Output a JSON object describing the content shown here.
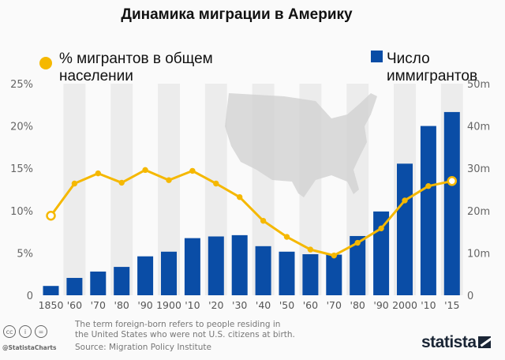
{
  "chart_data": {
    "type": "bar+line",
    "title": "Динамика миграции в Америку",
    "categories": [
      "1850",
      "'60",
      "'70",
      "'80",
      "'90",
      "1900",
      "'10",
      "'20",
      "'30",
      "'40",
      "'50",
      "'60",
      "'70",
      "'80",
      "'90",
      "2000",
      "'10",
      "'15"
    ],
    "series": [
      {
        "name": "Число иммигрантов",
        "type": "bar",
        "axis": "right",
        "color": "#0a4da6",
        "values": [
          2.2,
          4.1,
          5.6,
          6.7,
          9.2,
          10.3,
          13.5,
          13.9,
          14.2,
          11.6,
          10.3,
          9.7,
          9.6,
          14.0,
          19.8,
          31.1,
          40.0,
          43.3
        ]
      },
      {
        "name": "% мигрантов в общем населении",
        "type": "line",
        "axis": "left",
        "color": "#f5b800",
        "values": [
          9.4,
          13.2,
          14.4,
          13.3,
          14.8,
          13.6,
          14.7,
          13.2,
          11.6,
          8.8,
          6.9,
          5.4,
          4.7,
          6.2,
          7.9,
          11.2,
          12.9,
          13.5
        ]
      }
    ],
    "left_axis": {
      "ylim": [
        0,
        25
      ],
      "ticks": [
        "0",
        "5%",
        "10%",
        "15%",
        "20%",
        "25%"
      ]
    },
    "right_axis": {
      "ylim": [
        0,
        50
      ],
      "ticks": [
        "0",
        "10m",
        "20m",
        "30m",
        "40m",
        "50m"
      ]
    },
    "legend": {
      "left_label_lines": [
        "% мигрантов в общем",
        "населении"
      ],
      "right_label_lines": [
        "Число",
        "иммигрантов"
      ]
    },
    "grid": false
  },
  "footer": {
    "note_lines": [
      "The term foreign-born refers to people residing in",
      "the United States who were not U.S. citizens at birth."
    ],
    "source": "Source: Migration Policy Institute",
    "handle": "@StatistaCharts",
    "logo": "statista"
  }
}
